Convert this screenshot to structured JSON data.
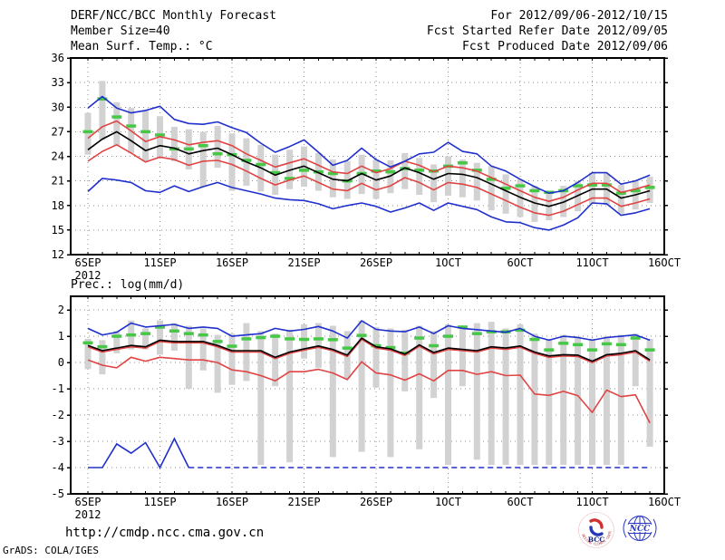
{
  "header": {
    "title": "DERF/NCC/BCC Monthly Forecast",
    "member_size": "Member Size=40",
    "for_period": "For 2012/09/06-2012/10/15",
    "fcst_started": "Fcst Started Refer Date 2012/09/05",
    "fcst_produced": "Fcst Produced Date 2012/09/06"
  },
  "footer": {
    "url": "http://cmdp.ncc.cma.gov.cn",
    "credit": "GrADS: COLA/IGES"
  },
  "logos": {
    "bcc_text": "BCC",
    "bcc_ring_text": "BEIJING CLIMATE CENTER",
    "ncc_text": "NCC"
  },
  "colors": {
    "max_min": "#2030cc",
    "quartiles": "#e04444",
    "mean": "#000000",
    "climatology": "#46c846",
    "spread_bar": "#d2d2d2",
    "grid": "#8c8c8c",
    "frame": "#000000"
  },
  "chart_data": [
    {
      "type": "line",
      "title": "Mean Surf. Temp.: °C",
      "ylim": [
        12,
        36
      ],
      "yticks": [
        36,
        33,
        30,
        27,
        24,
        21,
        18,
        15,
        12
      ],
      "x_ticks": [
        {
          "day_index": 0,
          "label": "6SEP"
        },
        {
          "day_index": 5,
          "label": "11SEP"
        },
        {
          "day_index": 10,
          "label": "16SEP"
        },
        {
          "day_index": 15,
          "label": "21SEP"
        },
        {
          "day_index": 20,
          "label": "26SEP"
        },
        {
          "day_index": 25,
          "label": "1OCT"
        },
        {
          "day_index": 30,
          "label": "6OCT"
        },
        {
          "day_index": 35,
          "label": "11OCT"
        },
        {
          "day_index": 40,
          "label": "16OCT"
        }
      ],
      "x_year_label": "2012",
      "n_points": 40,
      "series": [
        {
          "name": "member-max",
          "color_key": "max_min",
          "values": [
            29.9,
            31.3,
            29.9,
            29.3,
            29.6,
            30.1,
            28.5,
            28.0,
            27.9,
            28.2,
            27.5,
            26.9,
            25.6,
            24.5,
            25.2,
            26.0,
            24.5,
            22.9,
            23.5,
            25.0,
            23.6,
            22.7,
            23.4,
            24.3,
            24.5,
            25.7,
            24.6,
            24.3,
            22.8,
            22.2,
            21.2,
            20.3,
            19.5,
            19.8,
            20.8,
            22.0,
            22.0,
            20.6,
            21.0,
            21.7
          ]
        },
        {
          "name": "mean-plus-sd",
          "color_key": "quartiles",
          "values": [
            26.2,
            27.6,
            28.3,
            27.1,
            25.8,
            26.4,
            26.0,
            25.4,
            25.7,
            25.9,
            25.3,
            24.3,
            23.5,
            22.7,
            23.2,
            23.7,
            22.9,
            22.1,
            21.9,
            22.8,
            22.0,
            22.5,
            23.4,
            22.9,
            22.1,
            22.8,
            22.6,
            22.2,
            21.4,
            20.6,
            19.8,
            19.0,
            18.5,
            19.0,
            19.9,
            20.7,
            20.7,
            19.6,
            20.0,
            20.5
          ]
        },
        {
          "name": "ensemble-mean",
          "color_key": "mean",
          "values": [
            24.8,
            26.1,
            27.0,
            25.9,
            24.7,
            25.3,
            25.0,
            24.3,
            24.7,
            25.0,
            24.2,
            23.3,
            22.6,
            21.7,
            22.3,
            22.8,
            22.0,
            21.2,
            21.0,
            21.9,
            21.1,
            21.6,
            22.6,
            22.0,
            21.2,
            21.9,
            21.8,
            21.4,
            20.6,
            19.8,
            19.0,
            18.3,
            17.9,
            18.4,
            19.2,
            20.0,
            20.0,
            18.9,
            19.3,
            19.8
          ]
        },
        {
          "name": "mean-minus-sd",
          "color_key": "quartiles",
          "values": [
            23.4,
            24.6,
            25.4,
            24.4,
            23.3,
            23.9,
            23.6,
            22.9,
            23.4,
            23.5,
            23.0,
            22.2,
            21.3,
            20.5,
            21.1,
            21.6,
            20.8,
            20.0,
            19.8,
            20.7,
            19.9,
            20.4,
            21.4,
            20.8,
            19.9,
            20.8,
            20.6,
            20.2,
            19.4,
            18.6,
            17.8,
            17.1,
            16.8,
            17.3,
            18.1,
            18.9,
            18.9,
            17.9,
            18.3,
            18.8
          ]
        },
        {
          "name": "member-min",
          "color_key": "max_min",
          "values": [
            19.7,
            21.3,
            21.1,
            20.8,
            19.8,
            19.6,
            20.4,
            19.7,
            20.3,
            20.8,
            20.2,
            19.8,
            19.4,
            18.9,
            18.7,
            18.6,
            18.2,
            17.6,
            18.0,
            18.3,
            17.9,
            17.2,
            17.7,
            18.3,
            17.4,
            18.3,
            17.9,
            17.5,
            16.6,
            16.0,
            15.9,
            15.3,
            15.0,
            15.6,
            16.5,
            18.3,
            18.2,
            16.8,
            17.1,
            17.6
          ]
        }
      ],
      "climatology_dashes": [
        27.0,
        31.0,
        28.8,
        27.7,
        27.0,
        26.6,
        24.9,
        24.9,
        25.3,
        24.3,
        24.2,
        23.5,
        23.0,
        22.0,
        21.3,
        22.3,
        22.1,
        21.9,
        21.0,
        21.9,
        22.2,
        22.1,
        22.5,
        22.3,
        22.2,
        22.8,
        23.2,
        22.3,
        21.2,
        20.1,
        20.4,
        19.8,
        19.6,
        19.8,
        20.4,
        20.5,
        20.5,
        19.5,
        19.8,
        20.2
      ],
      "spread_bars": [
        [
          24.2,
          29.3
        ],
        [
          26.0,
          33.2
        ],
        [
          25.3,
          30.6
        ],
        [
          24.4,
          29.9
        ],
        [
          23.4,
          29.6
        ],
        [
          23.8,
          28.9
        ],
        [
          23.4,
          27.6
        ],
        [
          22.4,
          27.3
        ],
        [
          20.3,
          27.0
        ],
        [
          22.6,
          27.7
        ],
        [
          19.8,
          26.8
        ],
        [
          20.4,
          26.2
        ],
        [
          19.7,
          25.4
        ],
        [
          19.3,
          24.2
        ],
        [
          20.0,
          24.8
        ],
        [
          20.3,
          25.2
        ],
        [
          19.8,
          24.4
        ],
        [
          19.0,
          23.6
        ],
        [
          18.8,
          23.4
        ],
        [
          19.4,
          24.2
        ],
        [
          18.8,
          23.6
        ],
        [
          19.5,
          23.5
        ],
        [
          20.0,
          24.4
        ],
        [
          19.3,
          23.8
        ],
        [
          18.4,
          23.0
        ],
        [
          19.2,
          24.0
        ],
        [
          19.0,
          23.6
        ],
        [
          18.6,
          23.2
        ],
        [
          17.4,
          22.8
        ],
        [
          17.0,
          21.8
        ],
        [
          16.6,
          21.2
        ],
        [
          16.0,
          20.4
        ],
        [
          16.2,
          19.8
        ],
        [
          16.6,
          20.4
        ],
        [
          17.3,
          21.0
        ],
        [
          18.2,
          22.0
        ],
        [
          18.1,
          21.9
        ],
        [
          17.0,
          20.5
        ],
        [
          17.5,
          21.0
        ],
        [
          18.3,
          21.5
        ]
      ]
    },
    {
      "type": "line",
      "title": "Prec.: log(mm/d)",
      "ylim": [
        -5,
        2
      ],
      "yticks": [
        2,
        1,
        0,
        -1,
        -2,
        -3,
        -4,
        -5
      ],
      "x_ticks": [
        {
          "day_index": 0,
          "label": "6SEP"
        },
        {
          "day_index": 5,
          "label": "11SEP"
        },
        {
          "day_index": 10,
          "label": "16SEP"
        },
        {
          "day_index": 15,
          "label": "21SEP"
        },
        {
          "day_index": 20,
          "label": "26SEP"
        },
        {
          "day_index": 25,
          "label": "1OCT"
        },
        {
          "day_index": 30,
          "label": "6OCT"
        },
        {
          "day_index": 35,
          "label": "11OCT"
        },
        {
          "day_index": 40,
          "label": "16OCT"
        }
      ],
      "x_year_label": "2012",
      "n_points": 40,
      "series": [
        {
          "name": "member-max",
          "color_key": "max_min",
          "values": [
            1.3,
            1.05,
            1.15,
            1.5,
            1.35,
            1.4,
            1.45,
            1.3,
            1.35,
            1.3,
            1.0,
            1.05,
            1.1,
            1.3,
            1.2,
            1.26,
            1.37,
            1.2,
            0.93,
            1.59,
            1.26,
            1.2,
            1.17,
            1.35,
            1.1,
            1.4,
            1.3,
            1.25,
            1.2,
            1.15,
            1.3,
            1.0,
            0.85,
            1.0,
            0.95,
            0.85,
            0.95,
            1.0,
            1.05,
            0.85
          ]
        },
        {
          "name": "mean-plus-sd",
          "color_key": "quartiles",
          "values": [
            0.6,
            0.4,
            0.5,
            0.6,
            0.55,
            0.8,
            0.75,
            0.75,
            0.75,
            0.6,
            0.4,
            0.4,
            0.4,
            0.15,
            0.35,
            0.47,
            0.58,
            0.45,
            0.23,
            0.88,
            0.55,
            0.47,
            0.27,
            0.62,
            0.33,
            0.5,
            0.45,
            0.4,
            0.55,
            0.5,
            0.58,
            0.35,
            0.2,
            0.25,
            0.23,
            0.0,
            0.25,
            0.3,
            0.4,
            0.05
          ]
        },
        {
          "name": "ensemble-mean",
          "color_key": "mean",
          "values": [
            0.65,
            0.45,
            0.55,
            0.65,
            0.6,
            0.85,
            0.8,
            0.8,
            0.8,
            0.65,
            0.45,
            0.45,
            0.45,
            0.2,
            0.4,
            0.52,
            0.63,
            0.5,
            0.28,
            0.93,
            0.6,
            0.52,
            0.32,
            0.67,
            0.38,
            0.55,
            0.5,
            0.45,
            0.6,
            0.55,
            0.63,
            0.4,
            0.25,
            0.3,
            0.28,
            0.05,
            0.3,
            0.35,
            0.45,
            0.1
          ]
        },
        {
          "name": "mean-minus-sd",
          "color_key": "quartiles",
          "values": [
            0.1,
            -0.1,
            -0.2,
            0.2,
            0.05,
            0.2,
            0.15,
            0.1,
            0.1,
            0.0,
            -0.28,
            -0.35,
            -0.5,
            -0.7,
            -0.35,
            -0.35,
            -0.26,
            -0.4,
            -0.65,
            0.03,
            -0.4,
            -0.47,
            -0.67,
            -0.43,
            -0.7,
            -0.3,
            -0.3,
            -0.45,
            -0.35,
            -0.5,
            -0.48,
            -1.2,
            -1.25,
            -1.1,
            -1.26,
            -1.9,
            -1.05,
            -1.3,
            -1.23,
            -2.3
          ]
        },
        {
          "name": "member-min",
          "color_key": "max_min",
          "dashed_after": 7,
          "values": [
            -4,
            -4,
            -3.1,
            -3.45,
            -3.05,
            -4,
            -2.9,
            -4,
            -4,
            -4,
            -4,
            -4,
            -4,
            -4,
            -4,
            -4,
            -4,
            -4,
            -4,
            -4,
            -4,
            -4,
            -4,
            -4,
            -4,
            -4,
            -4,
            -4,
            -4,
            -4,
            -4,
            -4,
            -4,
            -4,
            -4,
            -4,
            -4,
            -4,
            -4,
            -4
          ]
        }
      ],
      "climatology_dashes": [
        0.75,
        0.6,
        1.0,
        1.05,
        1.1,
        1.35,
        1.2,
        1.1,
        1.05,
        0.8,
        0.62,
        0.9,
        0.95,
        1.0,
        0.9,
        0.88,
        0.9,
        0.87,
        0.55,
        1.03,
        0.64,
        0.57,
        0.36,
        0.93,
        0.64,
        1.0,
        1.35,
        1.1,
        1.17,
        1.17,
        1.23,
        0.88,
        0.48,
        0.73,
        0.68,
        0.48,
        0.71,
        0.68,
        0.93,
        0.48
      ],
      "spread_bars": [
        [
          -0.25,
          0.9
        ],
        [
          -0.45,
          0.85
        ],
        [
          0.35,
          1.2
        ],
        [
          0.5,
          1.6
        ],
        [
          0.5,
          1.3
        ],
        [
          0.3,
          1.6
        ],
        [
          0.45,
          1.5
        ],
        [
          -1.0,
          1.4
        ],
        [
          -0.3,
          1.3
        ],
        [
          -1.15,
          1.05
        ],
        [
          -0.85,
          1.1
        ],
        [
          -0.7,
          1.5
        ],
        [
          -3.9,
          1.2
        ],
        [
          -0.9,
          1.1
        ],
        [
          -3.8,
          1.25
        ],
        [
          0.15,
          1.45
        ],
        [
          -0.2,
          1.5
        ],
        [
          -3.6,
          1.4
        ],
        [
          -0.6,
          1.2
        ],
        [
          -3.4,
          1.6
        ],
        [
          -0.95,
          1.35
        ],
        [
          -3.6,
          1.3
        ],
        [
          -1.1,
          1.25
        ],
        [
          -3.3,
          1.4
        ],
        [
          -1.35,
          1.2
        ],
        [
          -3.9,
          1.45
        ],
        [
          -0.9,
          1.3
        ],
        [
          -3.7,
          1.5
        ],
        [
          -3.9,
          1.55
        ],
        [
          -3.9,
          1.3
        ],
        [
          -3.9,
          1.45
        ],
        [
          -3.9,
          1.1
        ],
        [
          -3.9,
          0.9
        ],
        [
          -3.9,
          1.05
        ],
        [
          -3.9,
          1.0
        ],
        [
          -3.9,
          0.9
        ],
        [
          -3.9,
          1.0
        ],
        [
          -3.9,
          1.05
        ],
        [
          -0.9,
          1.1
        ],
        [
          -3.2,
          0.9
        ]
      ]
    }
  ]
}
